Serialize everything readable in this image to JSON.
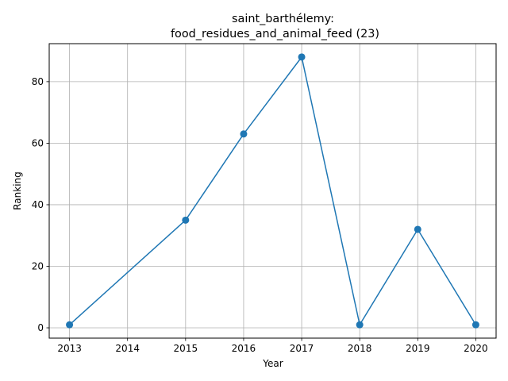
{
  "chart_data": {
    "type": "line",
    "title_line1": "saint_barthélemy:",
    "title_line2": "food_residues_and_animal_feed (23)",
    "xlabel": "Year",
    "ylabel": "Ranking",
    "x_ticks": [
      "2013",
      "2014",
      "2015",
      "2016",
      "2017",
      "2018",
      "2019",
      "2020"
    ],
    "y_ticks": [
      "0",
      "20",
      "40",
      "60",
      "80"
    ],
    "xlim": [
      2012.65,
      2020.35
    ],
    "ylim": [
      -3.35,
      92.35
    ],
    "grid": true,
    "line_color": "#1f77b4",
    "series": [
      {
        "x": [
          2013,
          2015,
          2016,
          2017,
          2018,
          2019,
          2020
        ],
        "values": [
          1,
          35,
          63,
          88,
          1,
          32,
          1
        ]
      }
    ]
  }
}
